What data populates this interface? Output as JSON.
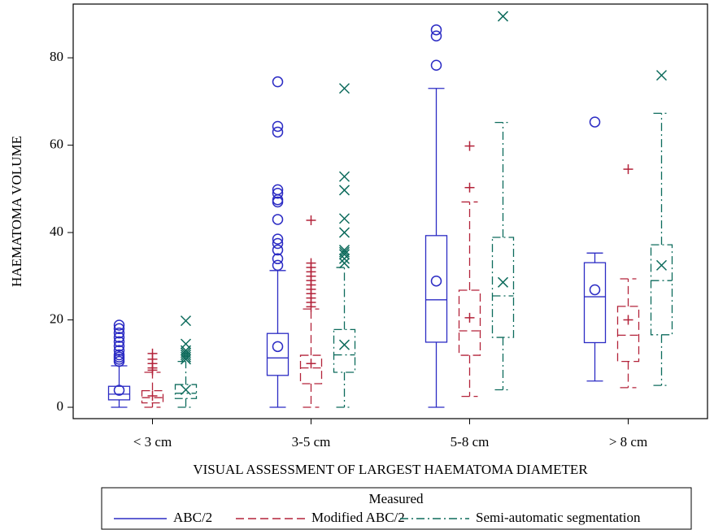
{
  "chart_data": {
    "type": "box",
    "ylabel": "HAEMATOMA VOLUME",
    "xlabel": "VISUAL ASSESSMENT OF LARGEST HAEMATOMA DIAMETER",
    "legend_title": "Measured",
    "categories": [
      "< 3 cm",
      "3-5 cm",
      "5-8 cm",
      "> 8 cm"
    ],
    "ylim": [
      -2.6,
      92.3
    ],
    "yticks": [
      0,
      20,
      40,
      60,
      80
    ],
    "series": [
      {
        "name": "ABC/2",
        "color": "#2b2bc4",
        "dash": "solid",
        "marker": "circle",
        "boxes": [
          {
            "min": 0,
            "q1": 1.7,
            "median": 3.0,
            "q3": 4.8,
            "max": 9.5,
            "mean": 3.9,
            "outliers": [
              10.5,
              11,
              11.5,
              12,
              13,
              14,
              15,
              16,
              17,
              18,
              18.8
            ]
          },
          {
            "min": 0,
            "q1": 7.3,
            "median": 11.3,
            "q3": 16.9,
            "max": 31.3,
            "mean": 13.9,
            "outliers": [
              32.5,
              34,
              36,
              37.5,
              38.5,
              43,
              47,
              47.5,
              49,
              49.8,
              63,
              64.3,
              74.5
            ]
          },
          {
            "min": 0,
            "q1": 14.9,
            "median": 24.6,
            "q3": 39.3,
            "max": 73,
            "mean": 28.9,
            "outliers": [
              78.3,
              85,
              86.4
            ]
          },
          {
            "min": 6,
            "q1": 14.8,
            "median": 25.3,
            "q3": 33.1,
            "max": 35.3,
            "mean": 26.9,
            "outliers": [
              65.3
            ]
          }
        ]
      },
      {
        "name": "Modified ABC/2",
        "color": "#b3233a",
        "dash": "dashed",
        "marker": "plus",
        "boxes": [
          {
            "min": 0,
            "q1": 1.0,
            "median": 2.2,
            "q3": 3.8,
            "max": 8,
            "mean": 2.6,
            "outliers": [
              8.5,
              9,
              10,
              11,
              12.3
            ]
          },
          {
            "min": 0,
            "q1": 5.4,
            "median": 9.0,
            "q3": 11.9,
            "max": 22.5,
            "mean": 10.0,
            "outliers": [
              23,
              24,
              25,
              26,
              27,
              28,
              29,
              30,
              31,
              32,
              33,
              42.8
            ]
          },
          {
            "min": 2.5,
            "q1": 11.9,
            "median": 17.5,
            "q3": 26.8,
            "max": 47,
            "mean": 20.5,
            "outliers": [
              50.3,
              59.8
            ]
          },
          {
            "min": 4.5,
            "q1": 10.5,
            "median": 16.5,
            "q3": 23.1,
            "max": 29.4,
            "mean": 20,
            "outliers": [
              54.5
            ]
          }
        ]
      },
      {
        "name": "Semi-automatic segmentation",
        "color": "#0d6b5c",
        "dash": "dashdot",
        "marker": "x",
        "boxes": [
          {
            "min": 0,
            "q1": 2,
            "median": 3.2,
            "q3": 5.2,
            "max": 10.5,
            "mean": 4,
            "outliers": [
              11,
              11.5,
              12,
              12.5,
              13,
              14.5,
              19.8
            ]
          },
          {
            "min": 0,
            "q1": 8,
            "median": 12,
            "q3": 17.8,
            "max": 32,
            "mean": 14.3,
            "outliers": [
              33,
              34,
              35,
              35.5,
              36,
              40,
              43.2,
              49.7,
              52.8,
              73
            ]
          },
          {
            "min": 4,
            "q1": 16,
            "median": 25.5,
            "q3": 38.9,
            "max": 65.2,
            "mean": 28.6,
            "outliers": [
              89.5
            ]
          },
          {
            "min": 5,
            "q1": 16.6,
            "median": 29,
            "q3": 37.2,
            "max": 67.3,
            "mean": 32.5,
            "outliers": [
              76
            ]
          }
        ]
      }
    ]
  }
}
